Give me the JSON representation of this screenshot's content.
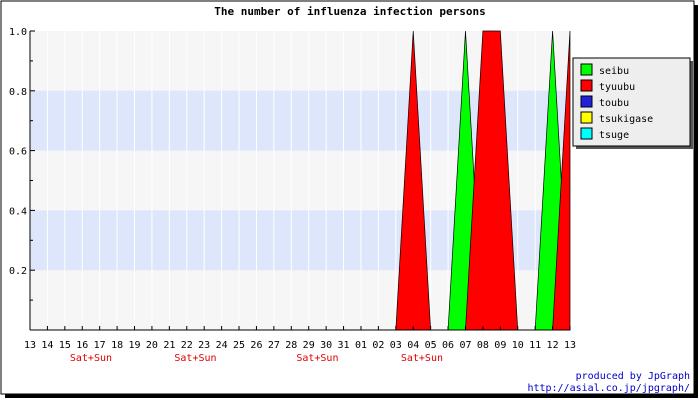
{
  "chart_data": {
    "type": "area",
    "title": "The number of influenza infection persons",
    "xlabel": "",
    "ylabel": "",
    "categories": [
      "13",
      "14",
      "15",
      "16",
      "17",
      "18",
      "19",
      "20",
      "21",
      "22",
      "23",
      "24",
      "25",
      "26",
      "27",
      "28",
      "29",
      "30",
      "31",
      "01",
      "02",
      "03",
      "04",
      "05",
      "06",
      "07",
      "08",
      "09",
      "10",
      "11",
      "12",
      "13"
    ],
    "weekend_labels": [
      {
        "after_index": 3,
        "text": "Sat+Sun"
      },
      {
        "after_index": 9,
        "text": "Sat+Sun"
      },
      {
        "after_index": 16,
        "text": "Sat+Sun"
      },
      {
        "after_index": 22,
        "text": "Sat+Sun"
      }
    ],
    "ylim": [
      0,
      1.0
    ],
    "yticks": [
      "0.2",
      "0.4",
      "0.6",
      "0.8",
      "1.0"
    ],
    "grid": true,
    "legend_position": "right",
    "series": [
      {
        "name": "seibu",
        "color": "#00ff00",
        "values": [
          0,
          0,
          0,
          0,
          0,
          0,
          0,
          0,
          0,
          0,
          0,
          0,
          0,
          0,
          0,
          0,
          0,
          0,
          0,
          0,
          0,
          0,
          0,
          0,
          0,
          1,
          0,
          0,
          0,
          0,
          1,
          0
        ]
      },
      {
        "name": "tyuubu",
        "color": "#ff0000",
        "values": [
          0,
          0,
          0,
          0,
          0,
          0,
          0,
          0,
          0,
          0,
          0,
          0,
          0,
          0,
          0,
          0,
          0,
          0,
          0,
          0,
          0,
          0,
          1,
          0,
          0,
          0,
          1,
          1,
          0,
          0,
          0,
          1
        ]
      },
      {
        "name": "toubu",
        "color": "#2222dd",
        "values": [
          0,
          0,
          0,
          0,
          0,
          0,
          0,
          0,
          0,
          0,
          0,
          0,
          0,
          0,
          0,
          0,
          0,
          0,
          0,
          0,
          0,
          0,
          0,
          0,
          0,
          0,
          0,
          0,
          0,
          0,
          0,
          0
        ]
      },
      {
        "name": "tsukigase",
        "color": "#ffff00",
        "values": [
          0,
          0,
          0,
          0,
          0,
          0,
          0,
          0,
          0,
          0,
          0,
          0,
          0,
          0,
          0,
          0,
          0,
          0,
          0,
          0,
          0,
          0,
          0,
          0,
          0,
          0,
          0,
          0,
          0,
          0,
          0,
          0
        ]
      },
      {
        "name": "tsuge",
        "color": "#00ffff",
        "values": [
          0,
          0,
          0,
          0,
          0,
          0,
          0,
          0,
          0,
          0,
          0,
          0,
          0,
          0,
          0,
          0,
          0,
          0,
          0,
          0,
          0,
          0,
          0,
          0,
          0,
          0,
          0,
          0,
          0,
          0,
          0,
          0
        ]
      }
    ]
  },
  "footer": {
    "line1": "produced by JpGraph",
    "line2": "http://asial.co.jp/jpgraph/"
  }
}
